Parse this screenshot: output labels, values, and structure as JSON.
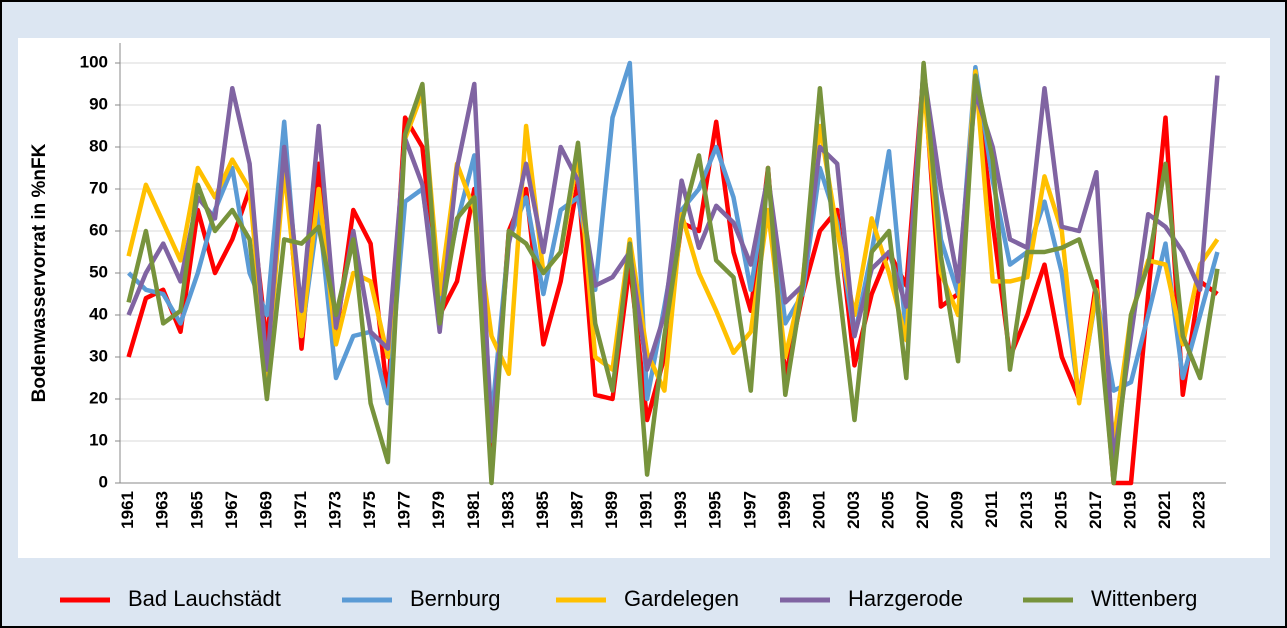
{
  "chart_data": {
    "type": "line",
    "ylabel": "Bodenwasservorrat in %nFK",
    "categories": [
      "1961",
      null,
      "1963",
      null,
      "1965",
      null,
      "1967",
      null,
      "1969",
      null,
      "1971",
      null,
      "1973",
      null,
      "1975",
      null,
      "1977",
      null,
      "1979",
      null,
      "1981",
      null,
      "1983",
      null,
      "1985",
      null,
      "1987",
      null,
      "1989",
      null,
      "1991",
      null,
      "1993",
      null,
      "1995",
      null,
      "1997",
      null,
      "1999",
      null,
      "2001",
      null,
      "2003",
      null,
      "2005",
      null,
      "2007",
      null,
      "2009",
      null,
      "2011",
      null,
      "2013",
      null,
      "2015",
      null,
      "2017",
      null,
      "2019",
      null,
      "2021",
      null,
      "2023",
      null
    ],
    "ylim": [
      0,
      100
    ],
    "yticks": [
      0,
      10,
      20,
      30,
      40,
      50,
      60,
      70,
      80,
      90,
      100
    ],
    "grid": true,
    "legend": "bottom",
    "series": [
      {
        "name": "Bad Lauchstädt",
        "color": "#ff0000",
        "values": [
          30,
          44,
          46,
          36,
          65,
          50,
          58,
          70,
          33,
          78,
          32,
          76,
          35,
          65,
          57,
          20,
          87,
          80,
          40,
          48,
          70,
          5,
          60,
          70,
          33,
          48,
          72,
          21,
          20,
          52,
          15,
          30,
          62,
          60,
          86,
          55,
          41,
          75,
          25,
          45,
          60,
          65,
          28,
          45,
          55,
          47,
          98,
          42,
          45,
          97,
          62,
          30,
          40,
          52,
          30,
          20,
          48,
          0,
          0,
          45,
          87,
          21,
          48,
          45
        ]
      },
      {
        "name": "Bernburg",
        "color": "#5b9bd5",
        "values": [
          50,
          46,
          45,
          38,
          50,
          65,
          75,
          50,
          40,
          86,
          35,
          65,
          25,
          35,
          36,
          19,
          67,
          70,
          42,
          62,
          78,
          15,
          58,
          68,
          45,
          65,
          68,
          46,
          87,
          100,
          20,
          42,
          65,
          70,
          80,
          68,
          46,
          73,
          38,
          45,
          75,
          62,
          35,
          55,
          79,
          35,
          99,
          58,
          45,
          99,
          72,
          52,
          55,
          67,
          50,
          20,
          45,
          22,
          24,
          40,
          57,
          25,
          40,
          55
        ]
      },
      {
        "name": "Gardelegen",
        "color": "#ffc000",
        "values": [
          54,
          71,
          62,
          53,
          75,
          68,
          77,
          70,
          25,
          75,
          35,
          70,
          33,
          50,
          48,
          30,
          82,
          93,
          45,
          76,
          65,
          35,
          26,
          85,
          50,
          55,
          78,
          30,
          27,
          58,
          31,
          22,
          64,
          50,
          41,
          31,
          36,
          65,
          30,
          48,
          85,
          60,
          40,
          63,
          50,
          34,
          95,
          50,
          40,
          98,
          48,
          48,
          49,
          73,
          60,
          19,
          46,
          10,
          40,
          53,
          52,
          33,
          52,
          58
        ]
      },
      {
        "name": "Harzgerode",
        "color": "#8064a2",
        "values": [
          40,
          50,
          57,
          48,
          68,
          63,
          94,
          76,
          27,
          80,
          41,
          85,
          37,
          60,
          36,
          32,
          82,
          71,
          36,
          75,
          95,
          10,
          57,
          76,
          55,
          80,
          72,
          47,
          49,
          55,
          27,
          40,
          72,
          56,
          66,
          62,
          52,
          73,
          43,
          47,
          80,
          76,
          35,
          51,
          55,
          42,
          98,
          70,
          48,
          93,
          80,
          58,
          56,
          94,
          61,
          60,
          74,
          5,
          35,
          64,
          61,
          55,
          46,
          97
        ]
      },
      {
        "name": "Wittenberg",
        "color": "#77933c",
        "values": [
          43,
          60,
          38,
          41,
          71,
          60,
          65,
          58,
          20,
          58,
          57,
          61,
          40,
          58,
          19,
          5,
          83,
          95,
          38,
          63,
          68,
          0,
          60,
          57,
          50,
          55,
          81,
          38,
          22,
          57,
          2,
          35,
          62,
          78,
          53,
          49,
          22,
          75,
          21,
          47,
          94,
          50,
          15,
          55,
          60,
          25,
          100,
          54,
          29,
          97,
          77,
          27,
          55,
          55,
          56,
          58,
          45,
          0,
          40,
          52,
          76,
          35,
          25,
          51
        ]
      }
    ]
  }
}
